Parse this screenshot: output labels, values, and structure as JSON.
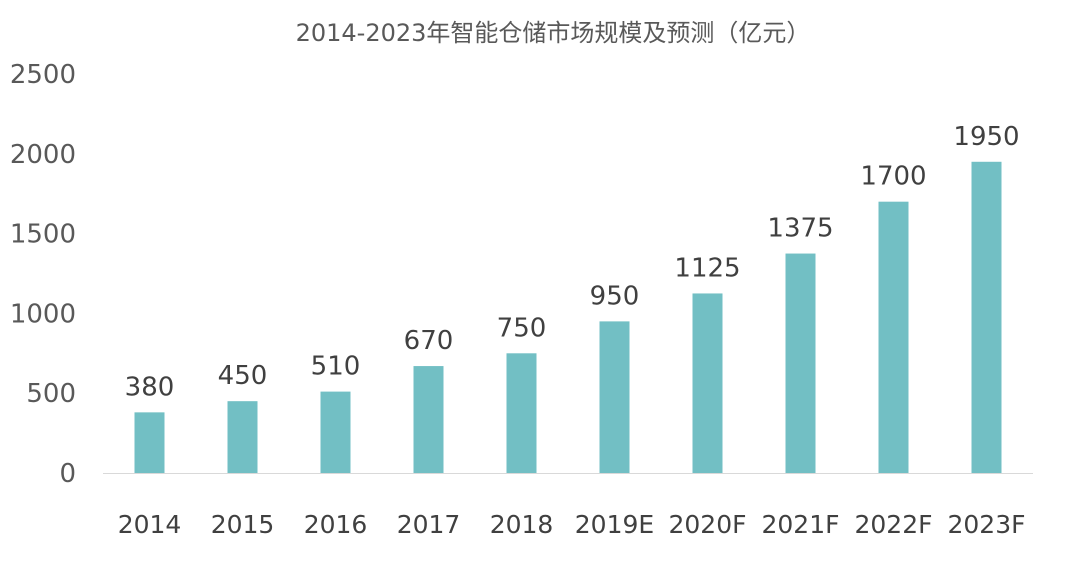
{
  "chart_data": {
    "type": "bar",
    "title": "2014-2023年智能仓储市场规模及预测（亿元）",
    "categories": [
      "2014",
      "2015",
      "2016",
      "2017",
      "2018",
      "2019E",
      "2020F",
      "2021F",
      "2022F",
      "2023F"
    ],
    "values": [
      380,
      450,
      510,
      670,
      750,
      950,
      1125,
      1375,
      1700,
      1950
    ],
    "yticks": [
      "0",
      "500",
      "1000",
      "1500",
      "2000",
      "2500"
    ],
    "ylim": [
      0,
      2500
    ],
    "grid": false,
    "legend": "none",
    "bar_color": "#72bfc4"
  }
}
